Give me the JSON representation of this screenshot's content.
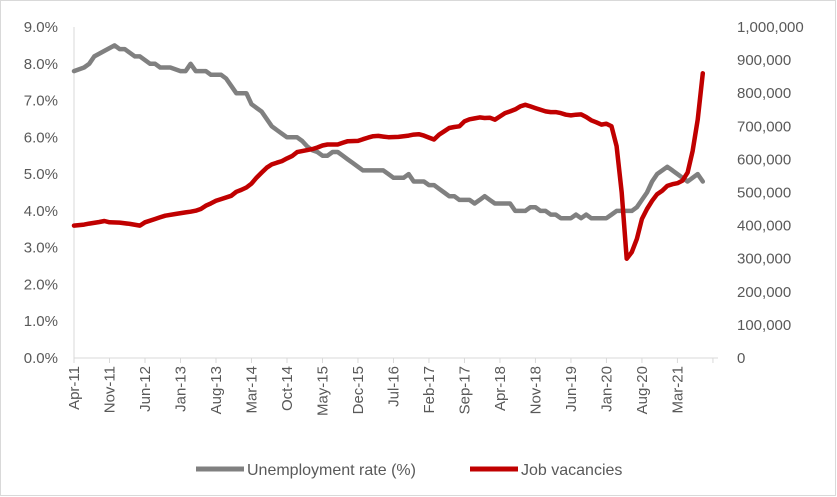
{
  "chart_data": {
    "type": "line",
    "title": "",
    "xlabel": "",
    "ylabel_left": "",
    "ylabel_right": "",
    "x_tick_labels": [
      "Apr-11",
      "Nov-11",
      "Jun-12",
      "Jan-13",
      "Aug-13",
      "Mar-14",
      "Oct-14",
      "May-15",
      "Dec-15",
      "Jul-16",
      "Feb-17",
      "Sep-17",
      "Apr-18",
      "Nov-18",
      "Jun-19",
      "Jan-20",
      "Aug-20",
      "Mar-21"
    ],
    "y_left_ticks": [
      "0.0%",
      "1.0%",
      "2.0%",
      "3.0%",
      "4.0%",
      "5.0%",
      "6.0%",
      "7.0%",
      "8.0%",
      "9.0%"
    ],
    "y_right_ticks": [
      "0",
      "100,000",
      "200,000",
      "300,000",
      "400,000",
      "500,000",
      "600,000",
      "700,000",
      "800,000",
      "900,000",
      "1,000,000"
    ],
    "y_left_range": [
      0,
      9
    ],
    "y_right_range": [
      0,
      1000000
    ],
    "x_range_months": [
      0,
      127
    ],
    "grid": false,
    "legend_position": "bottom",
    "series": [
      {
        "name": "Unemployment rate (%)",
        "axis": "left",
        "color": "#808080",
        "points": [
          [
            0,
            7.8
          ],
          [
            2,
            7.9
          ],
          [
            3,
            8.0
          ],
          [
            4,
            8.2
          ],
          [
            6,
            8.35
          ],
          [
            8,
            8.5
          ],
          [
            9,
            8.4
          ],
          [
            10,
            8.4
          ],
          [
            12,
            8.2
          ],
          [
            13,
            8.2
          ],
          [
            15,
            8.0
          ],
          [
            16,
            8.0
          ],
          [
            17,
            7.9
          ],
          [
            19,
            7.9
          ],
          [
            21,
            7.8
          ],
          [
            22,
            7.8
          ],
          [
            23,
            8.0
          ],
          [
            24,
            7.8
          ],
          [
            26,
            7.8
          ],
          [
            27,
            7.7
          ],
          [
            29,
            7.7
          ],
          [
            30,
            7.6
          ],
          [
            31,
            7.4
          ],
          [
            32,
            7.2
          ],
          [
            34,
            7.2
          ],
          [
            35,
            6.9
          ],
          [
            37,
            6.7
          ],
          [
            38,
            6.5
          ],
          [
            39,
            6.3
          ],
          [
            40,
            6.2
          ],
          [
            41,
            6.1
          ],
          [
            42,
            6.0
          ],
          [
            44,
            6.0
          ],
          [
            45,
            5.9
          ],
          [
            46,
            5.75
          ],
          [
            47,
            5.65
          ],
          [
            48,
            5.6
          ],
          [
            49,
            5.5
          ],
          [
            50,
            5.5
          ],
          [
            51,
            5.6
          ],
          [
            52,
            5.6
          ],
          [
            53,
            5.5
          ],
          [
            54,
            5.4
          ],
          [
            55,
            5.3
          ],
          [
            56,
            5.2
          ],
          [
            57,
            5.1
          ],
          [
            59,
            5.1
          ],
          [
            61,
            5.1
          ],
          [
            62,
            5.0
          ],
          [
            63,
            4.9
          ],
          [
            65,
            4.9
          ],
          [
            66,
            5.0
          ],
          [
            67,
            4.8
          ],
          [
            69,
            4.8
          ],
          [
            70,
            4.7
          ],
          [
            71,
            4.7
          ],
          [
            72,
            4.6
          ],
          [
            73,
            4.5
          ],
          [
            74,
            4.4
          ],
          [
            75,
            4.4
          ],
          [
            76,
            4.3
          ],
          [
            78,
            4.3
          ],
          [
            79,
            4.2
          ],
          [
            80,
            4.3
          ],
          [
            81,
            4.4
          ],
          [
            82,
            4.3
          ],
          [
            83,
            4.2
          ],
          [
            86,
            4.2
          ],
          [
            87,
            4.0
          ],
          [
            89,
            4.0
          ],
          [
            90,
            4.1
          ],
          [
            91,
            4.1
          ],
          [
            92,
            4.0
          ],
          [
            93,
            4.0
          ],
          [
            94,
            3.9
          ],
          [
            95,
            3.9
          ],
          [
            96,
            3.8
          ],
          [
            98,
            3.8
          ],
          [
            99,
            3.9
          ],
          [
            100,
            3.8
          ],
          [
            101,
            3.9
          ],
          [
            102,
            3.8
          ],
          [
            105,
            3.8
          ],
          [
            106,
            3.9
          ],
          [
            107,
            4.0
          ],
          [
            110,
            4.0
          ],
          [
            111,
            4.1
          ],
          [
            112,
            4.3
          ],
          [
            113,
            4.5
          ],
          [
            114,
            4.8
          ],
          [
            115,
            5.0
          ],
          [
            116,
            5.1
          ],
          [
            117,
            5.2
          ],
          [
            118,
            5.1
          ],
          [
            119,
            5.0
          ],
          [
            120,
            4.9
          ],
          [
            121,
            4.8
          ],
          [
            122,
            4.9
          ],
          [
            123,
            5.0
          ],
          [
            124,
            4.8
          ]
        ]
      },
      {
        "name": "Job vacancies",
        "axis": "right",
        "color": "#c00000",
        "points": [
          [
            0,
            400000
          ],
          [
            2,
            403000
          ],
          [
            3,
            406000
          ],
          [
            5,
            411000
          ],
          [
            6,
            414000
          ],
          [
            7,
            410000
          ],
          [
            9,
            409000
          ],
          [
            11,
            405000
          ],
          [
            13,
            400000
          ],
          [
            14,
            410000
          ],
          [
            16,
            420000
          ],
          [
            17,
            425000
          ],
          [
            18,
            430000
          ],
          [
            20,
            435000
          ],
          [
            22,
            440000
          ],
          [
            23,
            442000
          ],
          [
            24,
            445000
          ],
          [
            25,
            450000
          ],
          [
            26,
            460000
          ],
          [
            27,
            467000
          ],
          [
            28,
            475000
          ],
          [
            29,
            480000
          ],
          [
            31,
            490000
          ],
          [
            32,
            502000
          ],
          [
            33,
            508000
          ],
          [
            34,
            515000
          ],
          [
            35,
            527000
          ],
          [
            36,
            545000
          ],
          [
            37,
            560000
          ],
          [
            38,
            575000
          ],
          [
            39,
            585000
          ],
          [
            40,
            590000
          ],
          [
            41,
            595000
          ],
          [
            42,
            603000
          ],
          [
            43,
            610000
          ],
          [
            44,
            622000
          ],
          [
            45,
            625000
          ],
          [
            46,
            628000
          ],
          [
            47,
            631000
          ],
          [
            48,
            636000
          ],
          [
            49,
            642000
          ],
          [
            50,
            645000
          ],
          [
            52,
            645000
          ],
          [
            53,
            650000
          ],
          [
            54,
            655000
          ],
          [
            56,
            656000
          ],
          [
            57,
            661000
          ],
          [
            58,
            666000
          ],
          [
            59,
            670000
          ],
          [
            60,
            671000
          ],
          [
            61,
            669000
          ],
          [
            62,
            667000
          ],
          [
            64,
            668000
          ],
          [
            66,
            672000
          ],
          [
            67,
            675000
          ],
          [
            68,
            676000
          ],
          [
            69,
            672000
          ],
          [
            70,
            666000
          ],
          [
            71,
            660000
          ],
          [
            72,
            675000
          ],
          [
            73,
            685000
          ],
          [
            74,
            695000
          ],
          [
            75,
            698000
          ],
          [
            76,
            700000
          ],
          [
            77,
            715000
          ],
          [
            78,
            721000
          ],
          [
            79,
            724000
          ],
          [
            80,
            727000
          ],
          [
            81,
            725000
          ],
          [
            82,
            726000
          ],
          [
            83,
            720000
          ],
          [
            84,
            730000
          ],
          [
            85,
            740000
          ],
          [
            86,
            745000
          ],
          [
            87,
            751000
          ],
          [
            88,
            760000
          ],
          [
            89,
            765000
          ],
          [
            90,
            760000
          ],
          [
            91,
            755000
          ],
          [
            92,
            750000
          ],
          [
            93,
            745000
          ],
          [
            94,
            743000
          ],
          [
            95,
            743000
          ],
          [
            96,
            740000
          ],
          [
            97,
            735000
          ],
          [
            98,
            733000
          ],
          [
            99,
            735000
          ],
          [
            100,
            736000
          ],
          [
            101,
            728000
          ],
          [
            102,
            718000
          ],
          [
            103,
            712000
          ],
          [
            104,
            705000
          ],
          [
            105,
            708000
          ],
          [
            106,
            700000
          ],
          [
            107,
            640000
          ],
          [
            108,
            500000
          ],
          [
            109,
            300000
          ],
          [
            110,
            320000
          ],
          [
            111,
            360000
          ],
          [
            112,
            420000
          ],
          [
            113,
            450000
          ],
          [
            114,
            475000
          ],
          [
            115,
            495000
          ],
          [
            116,
            505000
          ],
          [
            117,
            520000
          ],
          [
            118,
            525000
          ],
          [
            119,
            528000
          ],
          [
            120,
            536000
          ],
          [
            121,
            560000
          ],
          [
            122,
            625000
          ],
          [
            123,
            720000
          ],
          [
            124,
            860000
          ]
        ]
      }
    ]
  }
}
